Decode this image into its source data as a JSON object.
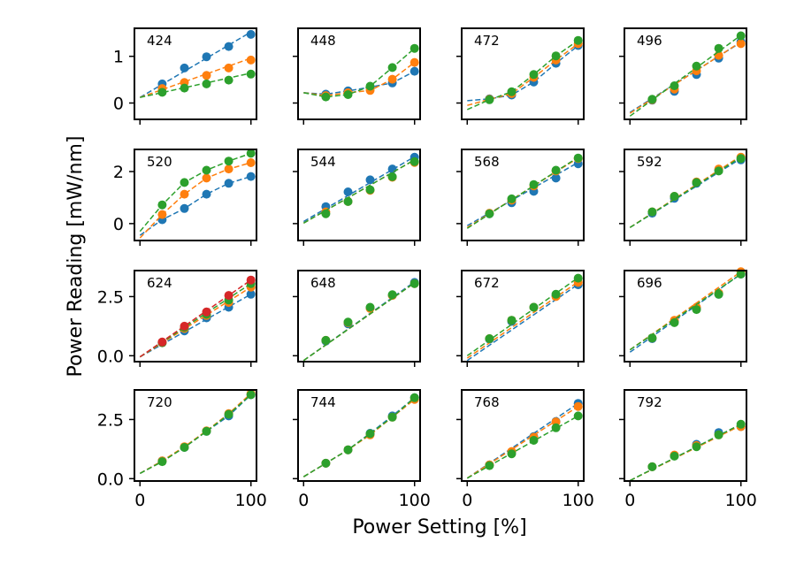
{
  "chart_data": {
    "type": "scatter",
    "layout": "4x4 grid of small-multiple panels, shared axes",
    "xlabel": "Power Setting [%]",
    "ylabel": "Power Reading [mW/nm]",
    "xlim": [
      -5,
      105
    ],
    "xticks": [
      0,
      100
    ],
    "series_colors": [
      "#1f77b4",
      "#ff7f0e",
      "#2ca02c",
      "#d62728"
    ],
    "style": "markers with dashed linear fit lines",
    "x": [
      20,
      40,
      60,
      80,
      100
    ],
    "rows": [
      {
        "ylim": [
          -0.35,
          1.6
        ],
        "yticks": [
          {
            "v": 0,
            "label": "0"
          },
          {
            "v": 1,
            "label": "1"
          }
        ]
      },
      {
        "ylim": [
          -0.65,
          2.85
        ],
        "yticks": [
          {
            "v": 0,
            "label": "0"
          },
          {
            "v": 2,
            "label": "2"
          }
        ]
      },
      {
        "ylim": [
          -0.25,
          3.6
        ],
        "yticks": [
          {
            "v": 0,
            "label": "0.0"
          },
          {
            "v": 2.5,
            "label": "2.5"
          }
        ]
      },
      {
        "ylim": [
          -0.1,
          3.75
        ],
        "yticks": [
          {
            "v": 0,
            "label": "0.0"
          },
          {
            "v": 2.5,
            "label": "2.5"
          }
        ]
      }
    ],
    "panels": [
      {
        "label": "424",
        "series": [
          {
            "values": [
              0.41,
              0.75,
              0.99,
              1.21,
              1.47
            ],
            "fit": [
              0.12,
              1.52
            ]
          },
          {
            "values": [
              0.31,
              0.44,
              0.59,
              0.75,
              0.92
            ],
            "fit": [
              0.12,
              0.96
            ]
          },
          {
            "values": [
              0.23,
              0.32,
              0.41,
              0.49,
              0.62
            ],
            "fit": [
              0.12,
              0.64
            ]
          }
        ]
      },
      {
        "label": "448",
        "series": [
          {
            "values": [
              0.19,
              0.26,
              0.34,
              0.43,
              0.68
            ],
            "fit": [
              0.22,
              0.68
            ],
            "curve": true
          },
          {
            "values": [
              0.16,
              0.22,
              0.27,
              0.51,
              0.87
            ],
            "fit": [
              0.22,
              0.87
            ],
            "curve": true
          },
          {
            "values": [
              0.13,
              0.18,
              0.36,
              0.76,
              1.17
            ],
            "fit": [
              0.22,
              1.17
            ],
            "curve": true
          }
        ]
      },
      {
        "label": "472",
        "series": [
          {
            "values": [
              0.09,
              0.17,
              0.45,
              0.85,
              1.23
            ],
            "fit": [
              0.05,
              1.26
            ],
            "curve": true
          },
          {
            "values": [
              0.08,
              0.2,
              0.55,
              0.92,
              1.27
            ],
            "fit": [
              -0.05,
              1.3
            ],
            "curve": true
          },
          {
            "values": [
              0.07,
              0.24,
              0.61,
              1.01,
              1.34
            ],
            "fit": [
              -0.14,
              1.35
            ],
            "curve": true
          }
        ]
      },
      {
        "label": "496",
        "series": [
          {
            "values": [
              0.06,
              0.25,
              0.61,
              0.96,
              1.31
            ],
            "fit": [
              -0.2,
              1.3
            ]
          },
          {
            "values": [
              0.07,
              0.3,
              0.69,
              1.02,
              1.27
            ],
            "fit": [
              -0.22,
              1.31
            ]
          },
          {
            "values": [
              0.08,
              0.37,
              0.79,
              1.17,
              1.44
            ],
            "fit": [
              -0.28,
              1.45
            ]
          }
        ]
      },
      {
        "label": "520",
        "series": [
          {
            "values": [
              0.15,
              0.58,
              1.13,
              1.55,
              1.81
            ],
            "fit": [
              -0.45,
              1.82
            ],
            "curve": true
          },
          {
            "values": [
              0.35,
              1.13,
              1.75,
              2.1,
              2.34
            ],
            "fit": [
              -0.55,
              2.35
            ],
            "curve": true
          },
          {
            "values": [
              0.72,
              1.58,
              2.05,
              2.4,
              2.7
            ],
            "fit": [
              -0.3,
              2.72
            ],
            "curve": true
          }
        ]
      },
      {
        "label": "544",
        "series": [
          {
            "values": [
              0.65,
              1.22,
              1.68,
              2.1,
              2.55
            ],
            "fit": [
              0.08,
              2.57
            ]
          },
          {
            "values": [
              0.45,
              0.85,
              1.28,
              1.78,
              2.35
            ],
            "fit": [
              0.02,
              2.45
            ]
          },
          {
            "values": [
              0.38,
              0.85,
              1.3,
              1.8,
              2.38
            ],
            "fit": [
              0.02,
              2.45
            ]
          }
        ]
      },
      {
        "label": "568",
        "series": [
          {
            "values": [
              0.38,
              0.8,
              1.24,
              1.75,
              2.3
            ],
            "fit": [
              -0.08,
              2.35
            ]
          },
          {
            "values": [
              0.4,
              0.9,
              1.45,
              2.02,
              2.5
            ],
            "fit": [
              -0.15,
              2.52
            ]
          },
          {
            "values": [
              0.38,
              0.95,
              1.5,
              2.05,
              2.52
            ],
            "fit": [
              -0.18,
              2.55
            ]
          }
        ]
      },
      {
        "label": "592",
        "series": [
          {
            "values": [
              0.4,
              0.97,
              1.55,
              2.05,
              2.45
            ],
            "fit": [
              -0.15,
              2.5
            ]
          },
          {
            "values": [
              0.45,
              1.05,
              1.6,
              2.1,
              2.55
            ],
            "fit": [
              -0.15,
              2.6
            ]
          },
          {
            "values": [
              0.45,
              1.05,
              1.58,
              2.02,
              2.5
            ],
            "fit": [
              -0.15,
              2.55
            ]
          }
        ]
      },
      {
        "label": "624",
        "series": [
          {
            "values": [
              0.55,
              1.05,
              1.6,
              2.05,
              2.6
            ],
            "fit": [
              -0.05,
              2.6
            ]
          },
          {
            "values": [
              0.55,
              1.15,
              1.7,
              2.25,
              2.9
            ],
            "fit": [
              -0.05,
              2.9
            ]
          },
          {
            "values": [
              0.55,
              1.2,
              1.75,
              2.35,
              3.05
            ],
            "fit": [
              -0.05,
              3.05
            ]
          },
          {
            "values": [
              0.58,
              1.25,
              1.85,
              2.55,
              3.2
            ],
            "fit": [
              -0.05,
              3.2
            ]
          }
        ]
      },
      {
        "label": "648",
        "series": [
          {
            "values": [
              0.62,
              1.35,
              2.02,
              2.55,
              3.1
            ],
            "fit": [
              -0.2,
              3.12
            ]
          },
          {
            "values": [
              0.65,
              1.4,
              2.0,
              2.55,
              3.05
            ],
            "fit": [
              -0.2,
              3.08
            ]
          },
          {
            "values": [
              0.65,
              1.42,
              2.05,
              2.58,
              3.05
            ],
            "fit": [
              -0.2,
              3.08
            ]
          }
        ]
      },
      {
        "label": "672",
        "series": [
          {
            "values": [
              0.7,
              1.45,
              2.05,
              2.55,
              3.0
            ],
            "fit": [
              -0.2,
              3.02
            ]
          },
          {
            "values": [
              0.72,
              1.5,
              2.05,
              2.5,
              3.1
            ],
            "fit": [
              -0.1,
              3.12
            ]
          },
          {
            "values": [
              0.72,
              1.5,
              2.05,
              2.6,
              3.28
            ],
            "fit": [
              0.0,
              3.3
            ]
          }
        ]
      },
      {
        "label": "696",
        "series": [
          {
            "values": [
              0.72,
              1.45,
              2.0,
              2.6,
              3.45
            ],
            "fit": [
              0.15,
              3.45
            ]
          },
          {
            "values": [
              0.75,
              1.5,
              2.05,
              2.65,
              3.55
            ],
            "fit": [
              0.25,
              3.55
            ]
          },
          {
            "values": [
              0.75,
              1.4,
              1.95,
              2.6,
              3.45
            ],
            "fit": [
              0.25,
              3.45
            ]
          }
        ]
      },
      {
        "label": "720",
        "series": [
          {
            "values": [
              0.75,
              1.32,
              2.0,
              2.65,
              3.55
            ],
            "fit": [
              0.22,
              3.55
            ],
            "curve": true
          },
          {
            "values": [
              0.75,
              1.35,
              2.02,
              2.75,
              3.6
            ],
            "fit": [
              0.22,
              3.6
            ],
            "curve": true
          },
          {
            "values": [
              0.72,
              1.32,
              2.0,
              2.72,
              3.55
            ],
            "fit": [
              0.22,
              3.55
            ],
            "curve": true
          }
        ]
      },
      {
        "label": "744",
        "series": [
          {
            "values": [
              0.65,
              1.22,
              1.92,
              2.65,
              3.42
            ],
            "fit": [
              0.08,
              3.42
            ],
            "curve": true
          },
          {
            "values": [
              0.65,
              1.22,
              1.85,
              2.6,
              3.35
            ],
            "fit": [
              0.08,
              3.35
            ],
            "curve": true
          },
          {
            "values": [
              0.65,
              1.22,
              1.9,
              2.6,
              3.42
            ],
            "fit": [
              0.08,
              3.42
            ],
            "curve": true
          }
        ]
      },
      {
        "label": "768",
        "series": [
          {
            "values": [
              0.58,
              1.12,
              1.78,
              2.42,
              3.18
            ],
            "fit": [
              0.02,
              3.18
            ]
          },
          {
            "values": [
              0.58,
              1.15,
              1.75,
              2.4,
              3.05
            ],
            "fit": [
              0.02,
              3.05
            ]
          },
          {
            "values": [
              0.55,
              1.05,
              1.62,
              2.15,
              2.65
            ],
            "fit": [
              0.02,
              2.65
            ]
          }
        ]
      },
      {
        "label": "792",
        "series": [
          {
            "values": [
              0.5,
              0.97,
              1.45,
              1.95,
              2.2
            ],
            "fit": [
              -0.08,
              2.3
            ]
          },
          {
            "values": [
              0.5,
              1.0,
              1.4,
              1.85,
              2.2
            ],
            "fit": [
              -0.08,
              2.25
            ]
          },
          {
            "values": [
              0.5,
              0.95,
              1.35,
              1.85,
              2.3
            ],
            "fit": [
              -0.08,
              2.3
            ]
          }
        ]
      }
    ]
  }
}
